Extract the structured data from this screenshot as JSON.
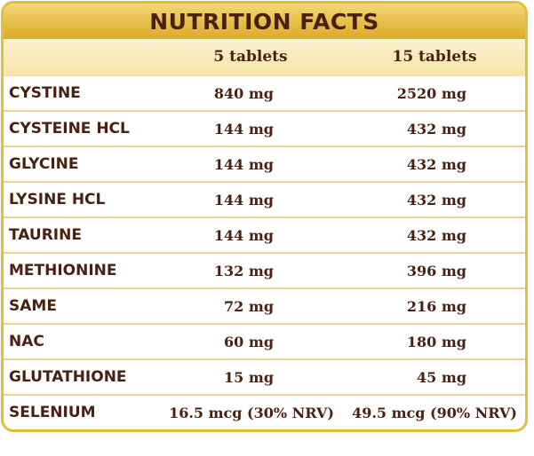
{
  "title": "NUTRITION FACTS",
  "columns": [
    "5 tablets",
    "15 tablets"
  ],
  "rows": [
    {
      "name": "CYSTINE",
      "v1": "840 mg",
      "v2": "2520 mg"
    },
    {
      "name": "CYSTEINE HCL",
      "v1": "144 mg",
      "v2": "432 mg"
    },
    {
      "name": "GLYCINE",
      "v1": "144 mg",
      "v2": "432 mg"
    },
    {
      "name": "LYSINE HCL",
      "v1": "144 mg",
      "v2": "432 mg"
    },
    {
      "name": "TAURINE",
      "v1": "144 mg",
      "v2": "432 mg"
    },
    {
      "name": "METHIONINE",
      "v1": "132 mg",
      "v2": "396 mg"
    },
    {
      "name": "SAME",
      "v1": "72 mg",
      "v2": "216 mg"
    },
    {
      "name": "NAC",
      "v1": "60 mg",
      "v2": "180 mg"
    },
    {
      "name": "GLUTATHIONE",
      "v1": "15 mg",
      "v2": "45 mg"
    },
    {
      "name": "SELENIUM",
      "v1": "16.5 mcg (30% NRV)",
      "v2": "49.5 mcg (90% NRV)"
    }
  ],
  "colors": {
    "border": "#e2bf3a",
    "header": "#e6bf48",
    "band": "#f8e9b6",
    "text": "#4a2110",
    "divider": "#ecd58a"
  }
}
